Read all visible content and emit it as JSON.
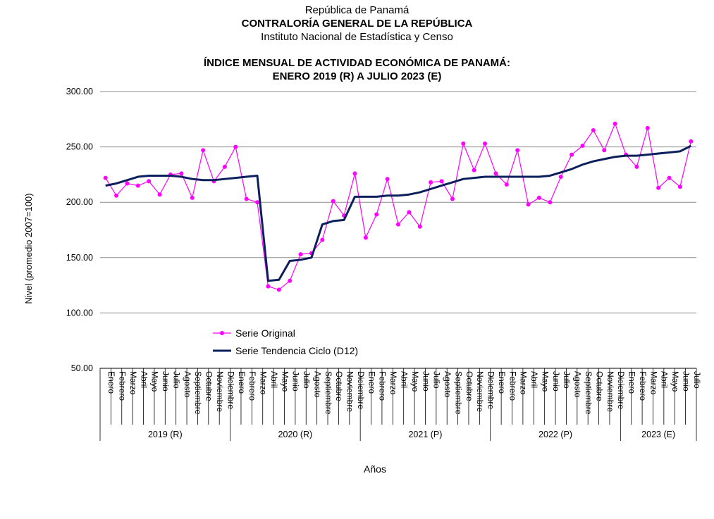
{
  "header": {
    "line1": "República de Panamá",
    "line2": "CONTRALORÍA GENERAL DE LA REPÚBLICA",
    "line3": "Instituto Nacional de Estadística y Censo"
  },
  "chart_data": {
    "type": "line",
    "title_line1": "ÍNDICE MENSUAL DE ACTIVIDAD ECONÓMICA DE PANAMÁ:",
    "title_line2": "ENERO 2019 (R) A JULIO 2023 (E)",
    "ylabel": "Nivel (promedio 2007=100)",
    "xlabel": "Años",
    "ylim": [
      50,
      300
    ],
    "yticks": [
      "50.00",
      "100.00",
      "150.00",
      "200.00",
      "250.00",
      "300.00"
    ],
    "grid": true,
    "legend_position": "inside-left, below lowest gridline",
    "months": [
      "Enero",
      "Febrero",
      "Marzo",
      "Abril",
      "Mayo",
      "Junio",
      "Julio",
      "Agosto",
      "Septiembre",
      "Octubre",
      "Noviembre",
      "Diciembre"
    ],
    "years": [
      {
        "label": "2019 (R)",
        "months": 12
      },
      {
        "label": "2020 (R)",
        "months": 12
      },
      {
        "label": "2021 (P)",
        "months": 12
      },
      {
        "label": "2022 (P)",
        "months": 12
      },
      {
        "label": "2023 (E)",
        "months": 7
      }
    ],
    "series": [
      {
        "name": "Serie Original",
        "color": "#FF00FF",
        "marker": "circle",
        "values": [
          222,
          206,
          217,
          215,
          219,
          207,
          225,
          226,
          204,
          247,
          219,
          232,
          250,
          203,
          200,
          124,
          121,
          129,
          153,
          154,
          166,
          201,
          188,
          226,
          168,
          189,
          221,
          180,
          191,
          178,
          218,
          219,
          203,
          253,
          229,
          253,
          226,
          216,
          247,
          198,
          204,
          200,
          223,
          243,
          251,
          265,
          247,
          271,
          243,
          232,
          267,
          213,
          222,
          214,
          255
        ]
      },
      {
        "name": "Serie Tendencia Ciclo (D12)",
        "color": "#0B1F5C",
        "marker": "none",
        "values": [
          215,
          217,
          220,
          223,
          224,
          224,
          224,
          223,
          221,
          220,
          220,
          221,
          222,
          223,
          224,
          129,
          130,
          147,
          148,
          150,
          180,
          183,
          184,
          205,
          205,
          205,
          206,
          206,
          207,
          209,
          212,
          215,
          218,
          221,
          222,
          223,
          223,
          223,
          223,
          223,
          223,
          224,
          227,
          230,
          234,
          237,
          239,
          241,
          242,
          242,
          243,
          244,
          245,
          246,
          251
        ]
      }
    ]
  }
}
